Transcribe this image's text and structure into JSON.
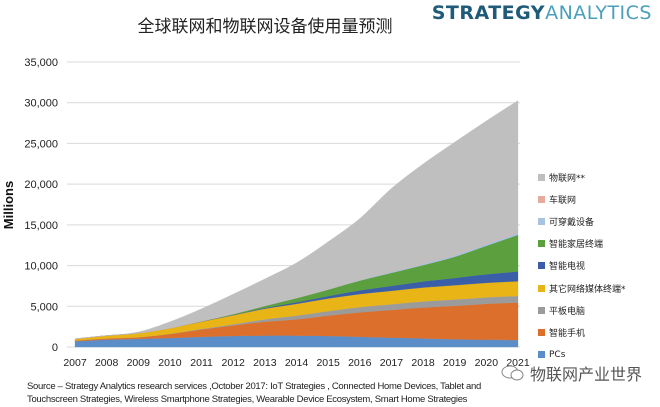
{
  "title": "全球联网和物联网设备使用量预测",
  "logo": {
    "part1": "STRATEGY",
    "part2": "ANALYTICS"
  },
  "source_line1": "Source – Strategy Analytics research services ,October 2017: IoT Strategies , Connected Home Devices, Tablet and",
  "source_line2": "Touchscreen Strategies, Wireless Smartphone Strategies, Wearable Device Ecosystem,  Smart Home Strategies",
  "watermark": "物联网产业世界",
  "chart_data": {
    "type": "area",
    "stacked": true,
    "title": "全球联网和物联网设备使用量预测",
    "ylabel": "Millions",
    "xlabel": "",
    "ylim": [
      0,
      35000
    ],
    "yticks": [
      "0",
      "5,000",
      "10,000",
      "15,000",
      "20,000",
      "25,000",
      "30,000",
      "35,000"
    ],
    "ytick_values": [
      0,
      5000,
      10000,
      15000,
      20000,
      25000,
      30000,
      35000
    ],
    "grid": "horizontal",
    "legend_position": "right",
    "categories": [
      "2007",
      "2008",
      "2009",
      "2010",
      "2011",
      "2012",
      "2013",
      "2014",
      "2015",
      "2016",
      "2017",
      "2018",
      "2019",
      "2020",
      "2021"
    ],
    "series": [
      {
        "name": "PCs",
        "color": "#5b8ec9",
        "values": [
          700,
          900,
          1000,
          1100,
          1250,
          1350,
          1400,
          1400,
          1350,
          1250,
          1150,
          1050,
          950,
          900,
          850
        ]
      },
      {
        "name": "智能手机",
        "color": "#db6f2b",
        "values": [
          100,
          150,
          200,
          500,
          900,
          1300,
          1700,
          2000,
          2500,
          3000,
          3400,
          3800,
          4100,
          4400,
          4600
        ]
      },
      {
        "name": "平板电脑",
        "color": "#9b9b9b",
        "values": [
          0,
          0,
          0,
          20,
          70,
          150,
          300,
          450,
          550,
          650,
          700,
          750,
          780,
          800,
          820
        ]
      },
      {
        "name": "其它网络媒体终端*",
        "color": "#e9b415",
        "values": [
          200,
          350,
          500,
          700,
          900,
          1100,
          1300,
          1450,
          1550,
          1600,
          1650,
          1700,
          1750,
          1780,
          1800
        ]
      },
      {
        "name": "智能电视",
        "color": "#3a5fa8",
        "values": [
          0,
          0,
          0,
          0,
          20,
          50,
          100,
          200,
          300,
          450,
          600,
          750,
          900,
          1050,
          1200
        ]
      },
      {
        "name": "智能家居终端",
        "color": "#5c9f3e",
        "values": [
          0,
          0,
          0,
          0,
          30,
          100,
          250,
          500,
          800,
          1200,
          1600,
          2000,
          2600,
          3500,
          4500
        ]
      },
      {
        "name": "可穿戴设备",
        "color": "#a7c3df",
        "values": [
          0,
          0,
          0,
          0,
          0,
          0,
          10,
          30,
          60,
          100,
          140,
          180,
          220,
          260,
          300
        ]
      },
      {
        "name": "车联网",
        "color": "#e6ab9a",
        "values": [
          0,
          0,
          0,
          0,
          0,
          0,
          5,
          10,
          20,
          30,
          40,
          50,
          60,
          80,
          100
        ]
      },
      {
        "name": "物联网**",
        "color": "#bfbfbf",
        "values": [
          0,
          0,
          150,
          780,
          1530,
          2450,
          3300,
          4300,
          5800,
          7500,
          10200,
          12200,
          13800,
          15000,
          16100
        ]
      }
    ]
  }
}
